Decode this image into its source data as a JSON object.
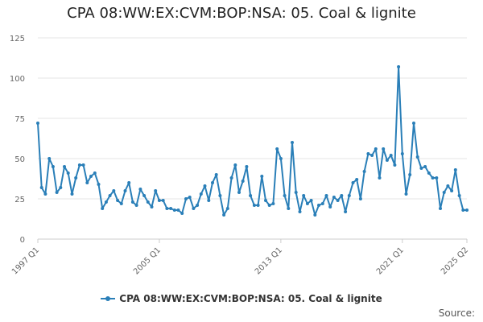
{
  "chart_data": {
    "type": "line",
    "title": "CPA 08:WW:EX:CVM:BOP:NSA: 05. Coal & lignite",
    "xlabel": "",
    "ylabel": "",
    "ylim": [
      0,
      125
    ],
    "y_ticks": [
      "0",
      "25",
      "50",
      "75",
      "100",
      "125"
    ],
    "x_tick_labels": [
      "1997 Q1",
      "2005 Q1",
      "2013 Q1",
      "2021 Q1",
      "2025 Q2"
    ],
    "grid": "horizontal",
    "legend_position": "bottom",
    "series_color": "#2a7fb8",
    "series": [
      {
        "name": "CPA 08:WW:EX:CVM:BOP:NSA: 05. Coal & lignite",
        "x": [
          "1997 Q1",
          "1997 Q2",
          "1997 Q3",
          "1997 Q4",
          "1998 Q1",
          "1998 Q2",
          "1998 Q3",
          "1998 Q4",
          "1999 Q1",
          "1999 Q2",
          "1999 Q3",
          "1999 Q4",
          "2000 Q1",
          "2000 Q2",
          "2000 Q3",
          "2000 Q4",
          "2001 Q1",
          "2001 Q2",
          "2001 Q3",
          "2001 Q4",
          "2002 Q1",
          "2002 Q2",
          "2002 Q3",
          "2002 Q4",
          "2003 Q1",
          "2003 Q2",
          "2003 Q3",
          "2003 Q4",
          "2004 Q1",
          "2004 Q2",
          "2004 Q3",
          "2004 Q4",
          "2005 Q1",
          "2005 Q2",
          "2005 Q3",
          "2005 Q4",
          "2006 Q1",
          "2006 Q2",
          "2006 Q3",
          "2006 Q4",
          "2007 Q1",
          "2007 Q2",
          "2007 Q3",
          "2007 Q4",
          "2008 Q1",
          "2008 Q2",
          "2008 Q3",
          "2008 Q4",
          "2009 Q1",
          "2009 Q2",
          "2009 Q3",
          "2009 Q4",
          "2010 Q1",
          "2010 Q2",
          "2010 Q3",
          "2010 Q4",
          "2011 Q1",
          "2011 Q2",
          "2011 Q3",
          "2011 Q4",
          "2012 Q1",
          "2012 Q2",
          "2012 Q3",
          "2012 Q4",
          "2013 Q1",
          "2013 Q2",
          "2013 Q3",
          "2013 Q4",
          "2014 Q1",
          "2014 Q2",
          "2014 Q3",
          "2014 Q4",
          "2015 Q1",
          "2015 Q2",
          "2015 Q3",
          "2015 Q4",
          "2016 Q1",
          "2016 Q2",
          "2016 Q3",
          "2016 Q4",
          "2017 Q1",
          "2017 Q2",
          "2017 Q3",
          "2017 Q4",
          "2018 Q1",
          "2018 Q2",
          "2018 Q3",
          "2018 Q4",
          "2019 Q1",
          "2019 Q2",
          "2019 Q3",
          "2019 Q4",
          "2020 Q1",
          "2020 Q2",
          "2020 Q3",
          "2020 Q4",
          "2021 Q1",
          "2021 Q2",
          "2021 Q3",
          "2021 Q4",
          "2022 Q1",
          "2022 Q2",
          "2022 Q3",
          "2022 Q4",
          "2023 Q1",
          "2023 Q2",
          "2023 Q3",
          "2023 Q4",
          "2024 Q1",
          "2024 Q2",
          "2024 Q3",
          "2024 Q4",
          "2025 Q1",
          "2025 Q2"
        ],
        "values": [
          72,
          32,
          28,
          50,
          45,
          29,
          32,
          45,
          41,
          28,
          38,
          46,
          46,
          35,
          39,
          41,
          34,
          19,
          23,
          27,
          30,
          24,
          22,
          30,
          35,
          23,
          21,
          31,
          27,
          23,
          20,
          30,
          24,
          24,
          19,
          19,
          18,
          18,
          16,
          25,
          26,
          19,
          21,
          28,
          33,
          24,
          35,
          40,
          27,
          15,
          19,
          38,
          46,
          29,
          36,
          45,
          27,
          21,
          21,
          39,
          24,
          21,
          22,
          56,
          50,
          27,
          19,
          60,
          29,
          17,
          27,
          22,
          24,
          15,
          21,
          22,
          27,
          20,
          26,
          24,
          27,
          17,
          27,
          35,
          37,
          25,
          42,
          53,
          52,
          56,
          38,
          56,
          49,
          52,
          46,
          107,
          53,
          28,
          40,
          72,
          51,
          44,
          45,
          41,
          38,
          38,
          19,
          29,
          33,
          30,
          43,
          27,
          18,
          18
        ]
      }
    ]
  },
  "legend": {
    "label": "CPA 08:WW:EX:CVM:BOP:NSA: 05. Coal & lignite"
  },
  "source_label": "Source:"
}
